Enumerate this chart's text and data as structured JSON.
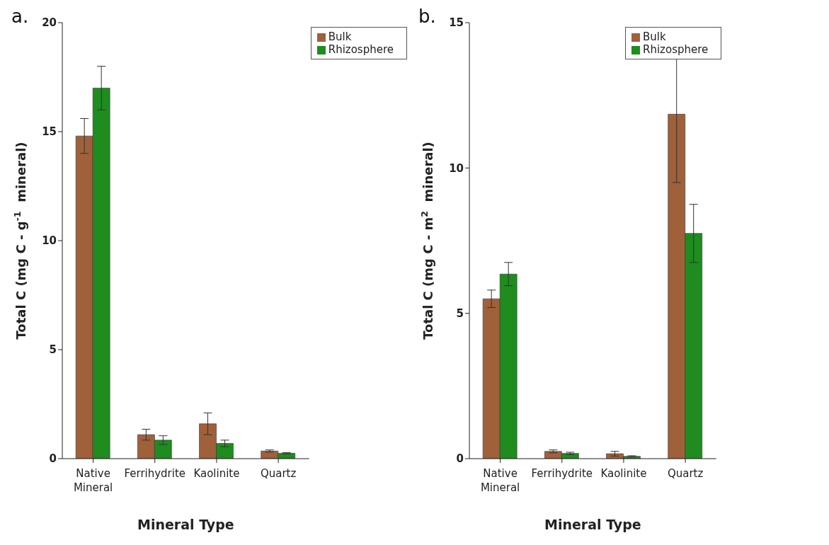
{
  "chart_data": [
    {
      "type": "bar",
      "title": "a.",
      "xlabel": "Mineral Type",
      "ylabel": "Total C (mg C - g$^{-1}$  mineral)",
      "categories": [
        "Native Mineral",
        "Ferrihydrite",
        "Kaolinite",
        "Quartz"
      ],
      "series": [
        {
          "name": "Bulk",
          "color": "#a0603a",
          "values": [
            14.8,
            1.1,
            1.6,
            0.35
          ],
          "errors": [
            0.8,
            0.25,
            0.5,
            0.05
          ]
        },
        {
          "name": "Rhizosphere",
          "color": "#1e8c1e",
          "values": [
            17.0,
            0.85,
            0.7,
            0.25
          ],
          "errors": [
            1.0,
            0.2,
            0.15,
            0.03
          ]
        }
      ],
      "ylim": [
        0,
        20
      ],
      "yticks": [
        0,
        5,
        10,
        15,
        20
      ],
      "grid": false,
      "legend": "top right"
    },
    {
      "type": "bar",
      "title": "b.",
      "xlabel": "Mineral Type",
      "ylabel": "Total C (mg C - m$^{2}$  mineral)",
      "categories": [
        "Native Mineral",
        "Ferrihydrite",
        "Kaolinite",
        "Quartz"
      ],
      "series": [
        {
          "name": "Bulk",
          "color": "#a0603a",
          "values": [
            5.5,
            0.25,
            0.17,
            11.85
          ],
          "errors": [
            0.3,
            0.05,
            0.08,
            2.35
          ]
        },
        {
          "name": "Rhizosphere",
          "color": "#1e8c1e",
          "values": [
            6.35,
            0.18,
            0.08,
            7.75
          ],
          "errors": [
            0.4,
            0.04,
            0.02,
            1.0
          ]
        }
      ],
      "ylim": [
        0,
        15
      ],
      "yticks": [
        0,
        5,
        10,
        15
      ],
      "grid": false,
      "legend": "top"
    }
  ]
}
